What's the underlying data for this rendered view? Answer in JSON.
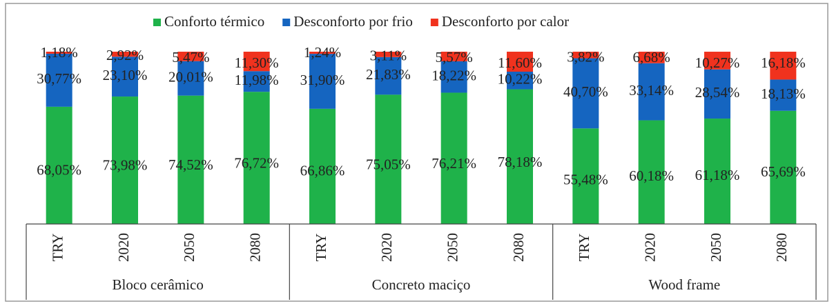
{
  "chart_data": {
    "type": "stacked_bar",
    "categories": [
      "TRY",
      "2020",
      "2050",
      "2080",
      "TRY",
      "2020",
      "2050",
      "2080",
      "TRY",
      "2020",
      "2050",
      "2080"
    ],
    "category_groups": [
      "Bloco cerâmico",
      "Concreto maciço",
      "Wood frame"
    ],
    "ylim": [
      0,
      100
    ],
    "legend": "top",
    "series": [
      {
        "name": "Conforto térmico",
        "color": "#1fb24a",
        "values": [
          68.05,
          73.98,
          74.52,
          76.72,
          66.86,
          75.05,
          76.21,
          78.18,
          55.48,
          60.18,
          61.18,
          65.69
        ],
        "value_labels": [
          "68,05%",
          "73,98%",
          "74,52%",
          "76,72%",
          "66,86%",
          "75,05%",
          "76,21%",
          "78,18%",
          "55,48%",
          "60,18%",
          "61,18%",
          "65,69%"
        ]
      },
      {
        "name": "Desconforto por frio",
        "color": "#1565c0",
        "values": [
          30.77,
          23.1,
          20.01,
          11.98,
          31.9,
          21.83,
          18.22,
          10.22,
          40.7,
          33.14,
          28.54,
          18.13
        ],
        "value_labels": [
          "30,77%",
          "23,10%",
          "20,01%",
          "11,98%",
          "31,90%",
          "21,83%",
          "18,22%",
          "10,22%",
          "40,70%",
          "33,14%",
          "28,54%",
          "18,13%"
        ]
      },
      {
        "name": "Desconforto por calor",
        "color": "#f0321e",
        "values": [
          1.18,
          2.92,
          5.47,
          11.3,
          1.24,
          3.11,
          5.57,
          11.6,
          3.82,
          6.68,
          10.27,
          16.18
        ],
        "value_labels": [
          "1,18%",
          "2,92%",
          "5,47%",
          "11,30%",
          "1,24%",
          "3,11%",
          "5,57%",
          "11,60%",
          "3,82%",
          "6,68%",
          "10,27%",
          "16,18%"
        ]
      }
    ]
  }
}
